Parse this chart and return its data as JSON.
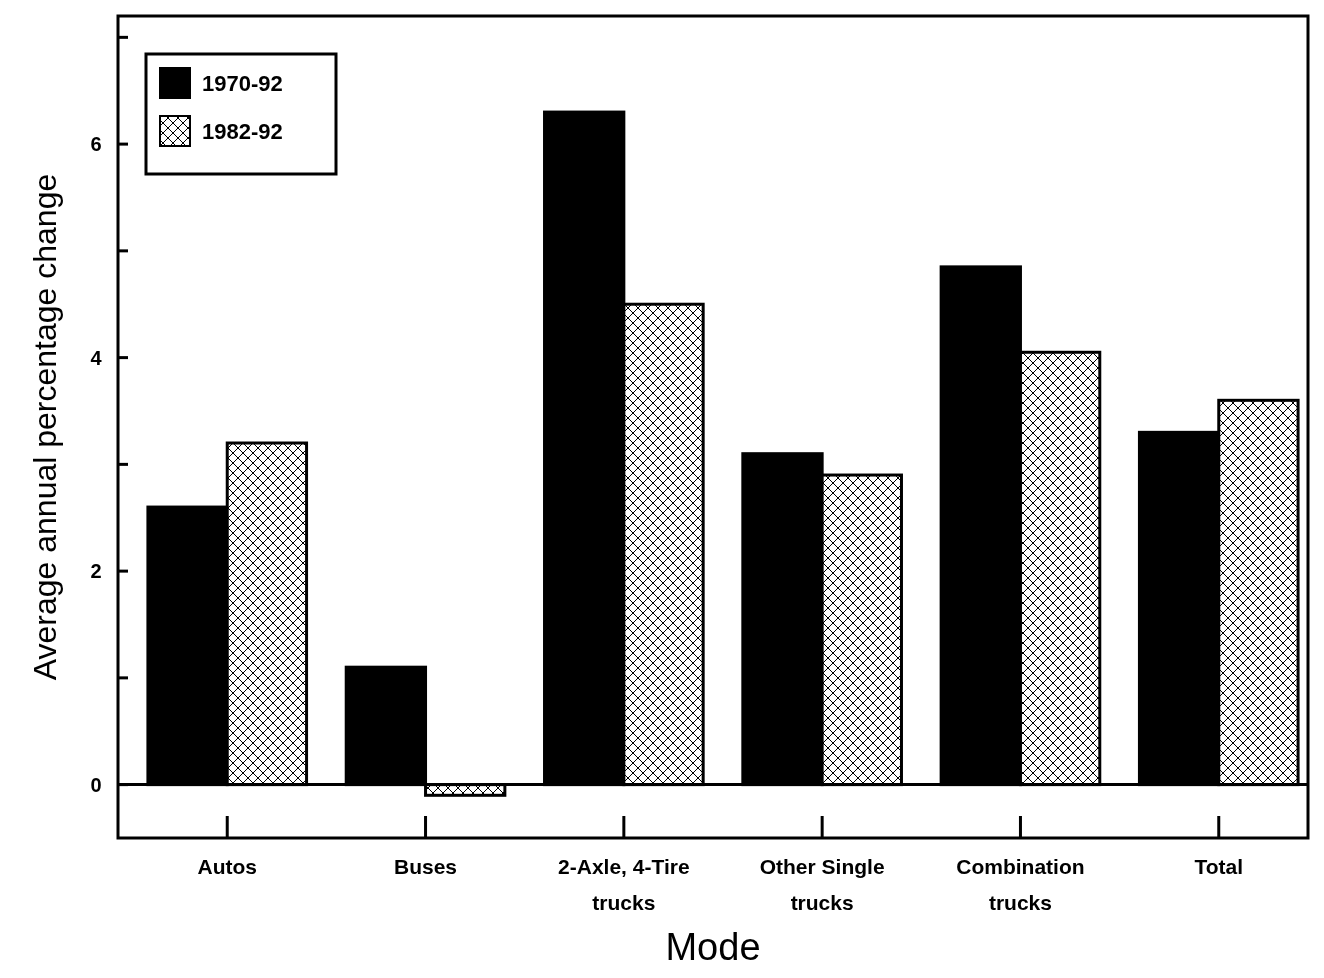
{
  "chart_data": {
    "type": "bar",
    "xlabel": "Mode",
    "ylabel": "Average annual percentage change",
    "categories": [
      "Autos",
      "Buses",
      "2-Axle, 4-Tire trucks",
      "Other Single trucks",
      "Combination trucks",
      "Total"
    ],
    "series": [
      {
        "name": "1970-92",
        "color": "#000000",
        "values": [
          2.6,
          1.1,
          6.3,
          3.1,
          4.85,
          3.3
        ]
      },
      {
        "name": "1982-92",
        "color": "#000000",
        "values": [
          3.2,
          -0.1,
          4.5,
          2.9,
          4.05,
          3.6
        ]
      }
    ],
    "ylim": [
      -0.5,
      7.2
    ],
    "yticks": [
      0,
      {
        "value": 1,
        "label": null
      },
      2,
      {
        "value": 3,
        "label": null
      },
      4,
      {
        "value": 5,
        "label": null
      },
      6,
      {
        "value": 7,
        "label": null
      }
    ],
    "ref_lines": [
      {
        "axis": "y",
        "value": 0,
        "label": null
      }
    ],
    "legend": "top left",
    "grid": false
  }
}
